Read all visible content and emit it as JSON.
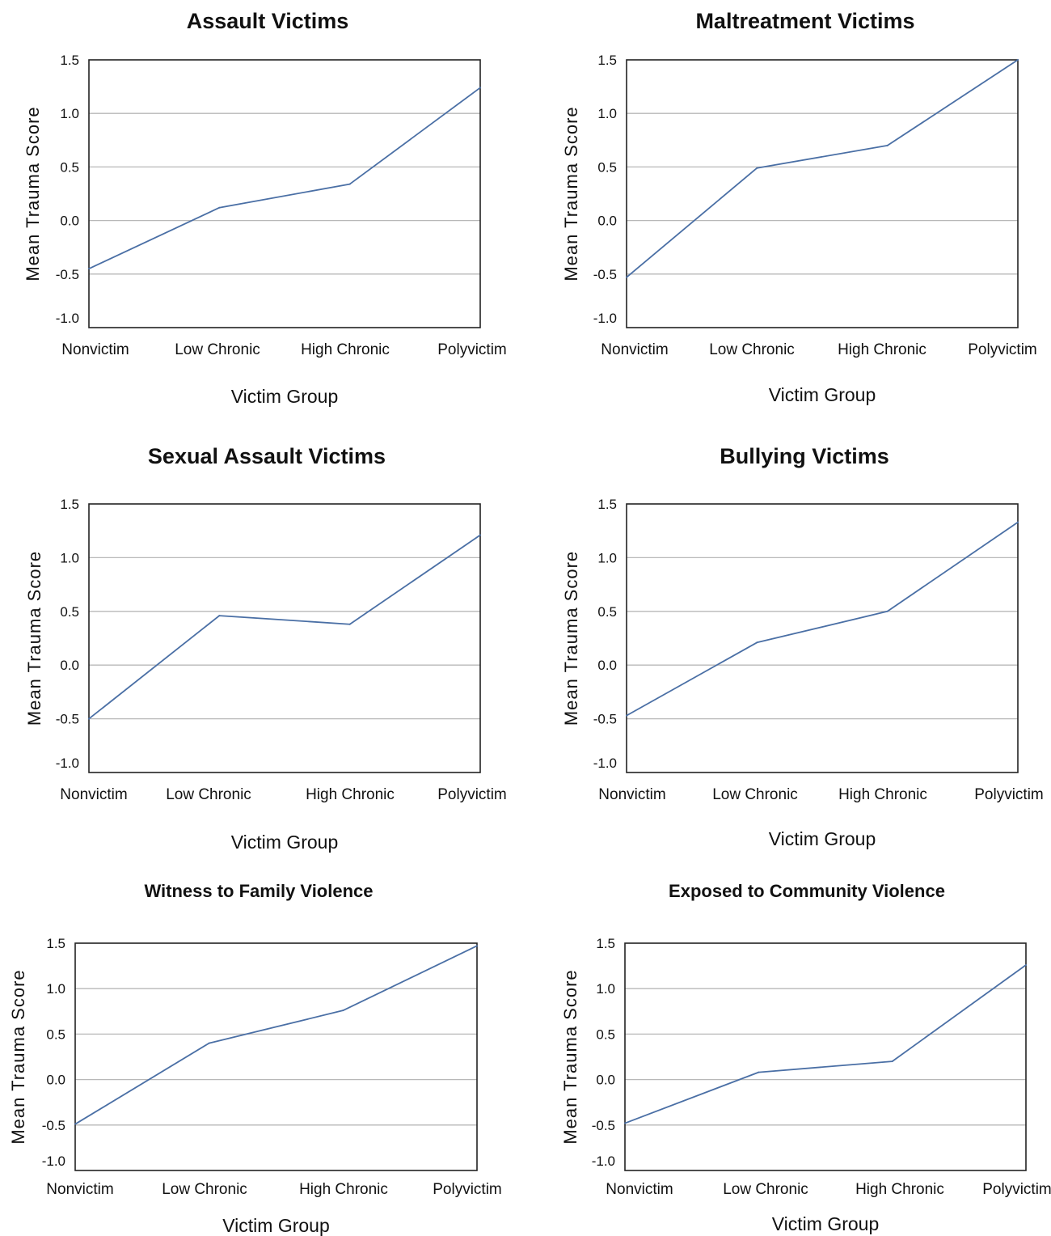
{
  "chart_data": [
    {
      "type": "line",
      "title": "Assault Victims",
      "xlabel": "Victim Group",
      "ylabel": "Mean Trauma Score",
      "categories": [
        "Nonvictim",
        "Low Chronic",
        "High Chronic",
        "Polyvictim"
      ],
      "values": [
        -0.45,
        0.12,
        0.34,
        1.24
      ],
      "ylim": [
        -1.0,
        1.5
      ],
      "yticks": [
        "1.5",
        "1.0",
        "0.5",
        "0.0",
        "-0.5",
        "-1.0"
      ],
      "grid": "horizontal",
      "line_color": "#4a6fa5"
    },
    {
      "type": "line",
      "title": "Maltreatment Victims",
      "xlabel": "Victim Group",
      "ylabel": "Mean Trauma Score",
      "categories": [
        "Nonvictim",
        "Low Chronic",
        "High Chronic",
        "Polyvictim"
      ],
      "values": [
        -0.53,
        0.49,
        0.7,
        1.5
      ],
      "ylim": [
        -1.0,
        1.5
      ],
      "yticks": [
        "1.5",
        "1.0",
        "0.5",
        "0.0",
        "-0.5",
        "-1.0"
      ],
      "grid": "horizontal",
      "line_color": "#4a6fa5"
    },
    {
      "type": "line",
      "title": "Sexual Assault Victims",
      "xlabel": "Victim Group",
      "ylabel": "Mean Trauma Score",
      "categories": [
        "Nonvictim",
        "Low Chronic",
        "High Chronic",
        "Polyvictim"
      ],
      "values": [
        -0.5,
        0.46,
        0.38,
        1.21
      ],
      "ylim": [
        -1.0,
        1.5
      ],
      "yticks": [
        "1.5",
        "1.0",
        "0.5",
        "0.0",
        "-0.5",
        "-1.0"
      ],
      "grid": "horizontal",
      "line_color": "#4a6fa5"
    },
    {
      "type": "line",
      "title": "Bullying Victims",
      "xlabel": "Victim Group",
      "ylabel": "Mean Trauma Score",
      "categories": [
        "Nonvictim",
        "Low Chronic",
        "High Chronic",
        "Polyvictim"
      ],
      "values": [
        -0.47,
        0.21,
        0.5,
        1.33
      ],
      "ylim": [
        -1.0,
        1.5
      ],
      "yticks": [
        "1.5",
        "1.0",
        "0.5",
        "0.0",
        "-0.5",
        "-1.0"
      ],
      "grid": "horizontal",
      "line_color": "#4a6fa5"
    },
    {
      "type": "line",
      "title": "Witness to Family Violence",
      "xlabel": "Victim Group",
      "ylabel": "Mean Trauma Score",
      "categories": [
        "Nonvictim",
        "Low Chronic",
        "High Chronic",
        "Polyvictim"
      ],
      "values": [
        -0.49,
        0.4,
        0.76,
        1.47
      ],
      "ylim": [
        -1.0,
        1.5
      ],
      "yticks": [
        "1.5",
        "1.0",
        "0.5",
        "0.0",
        "-0.5",
        "-1.0"
      ],
      "grid": "horizontal",
      "line_color": "#4a6fa5"
    },
    {
      "type": "line",
      "title": "Exposed to Community Violence",
      "xlabel": "Victim Group",
      "ylabel": "Mean Trauma Score",
      "categories": [
        "Nonvictim",
        "Low Chronic",
        "High Chronic",
        "Polyvictim"
      ],
      "values": [
        -0.48,
        0.08,
        0.2,
        1.26
      ],
      "ylim": [
        -1.0,
        1.5
      ],
      "yticks": [
        "1.5",
        "1.0",
        "0.5",
        "0.0",
        "-0.5",
        "-1.0"
      ],
      "grid": "horizontal",
      "line_color": "#4a6fa5"
    }
  ]
}
